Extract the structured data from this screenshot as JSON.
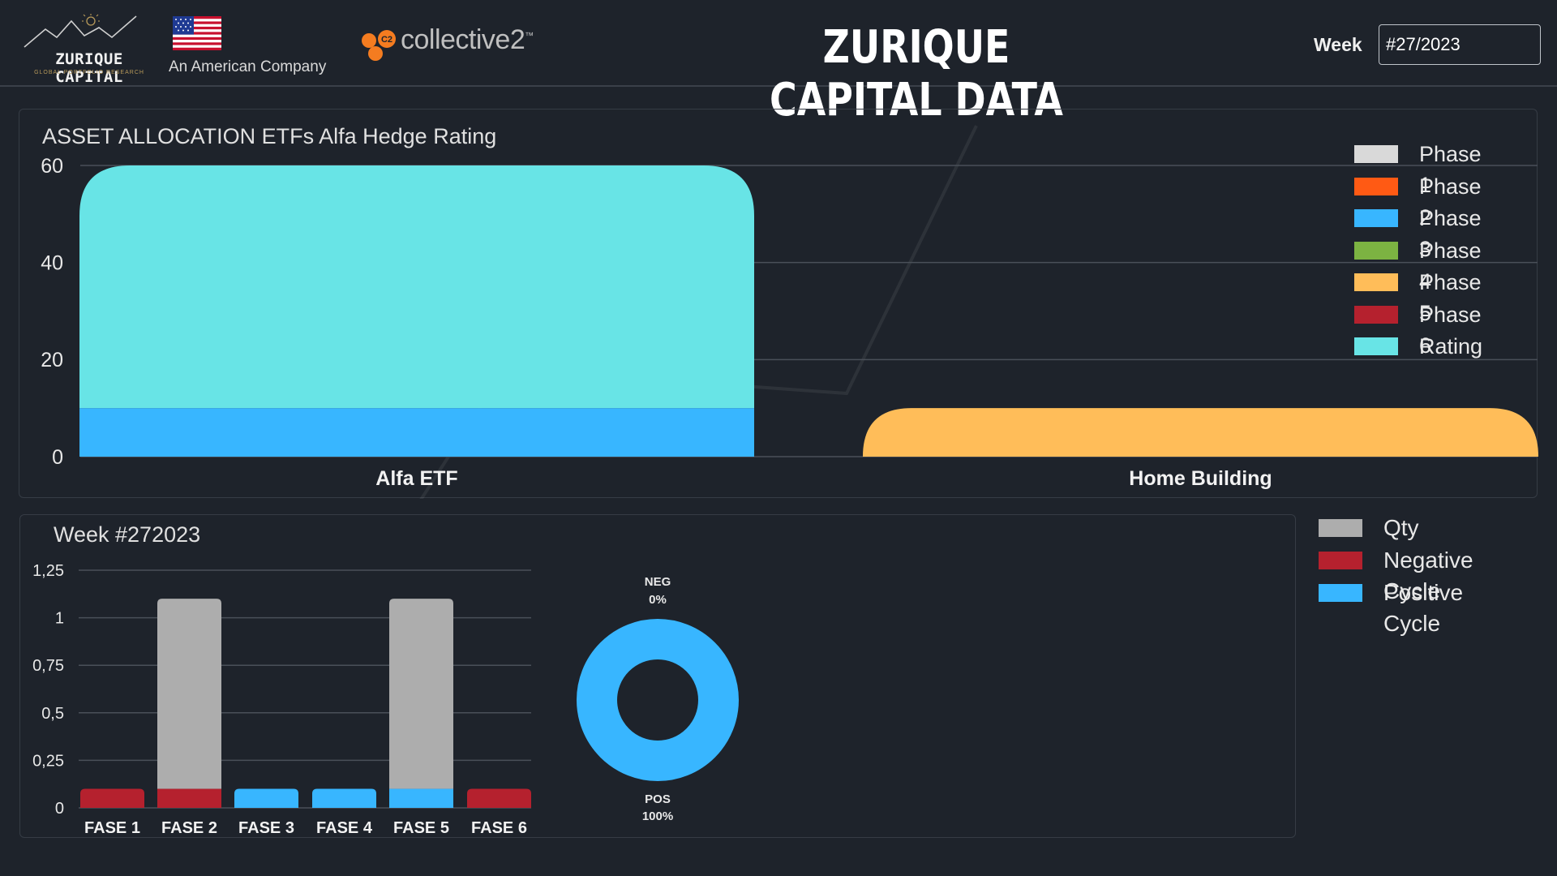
{
  "header": {
    "logo_name": "ZURIQUE CAPITAL",
    "logo_sub": "GLOBAL PORTFOLIO RESEARCH",
    "company_tagline": "An American Company",
    "partner_badge": "C2",
    "partner_name": "collective2",
    "partner_tm": "™",
    "title": "ZURIQUE CAPITAL DATA",
    "week_label": "Week",
    "week_value": "#27/2023"
  },
  "colors": {
    "background": "#1e232b",
    "phase1": "#d9d9d9",
    "phase2": "#ff5a14",
    "phase3": "#38b6ff",
    "phase4": "#7cb342",
    "phase5": "#ffbd59",
    "phase6": "#b5212e",
    "rating": "#68e4e6",
    "qty": "#adadad",
    "negative": "#b5212e",
    "positive": "#38b6ff"
  },
  "icons": [
    "mountain-sun-logo-icon",
    "us-flag-icon",
    "collective2-logo-icon"
  ],
  "chart_data": [
    {
      "type": "bar",
      "stacked": true,
      "title": "ASSET ALLOCATION ETFs Alfa Hedge Rating",
      "categories": [
        "Alfa ETF",
        "Home Building"
      ],
      "ylim": [
        0,
        60
      ],
      "yticks": [
        "0",
        "20",
        "40",
        "60"
      ],
      "grid": true,
      "legend_position": "top-right",
      "series": [
        {
          "name": "Phase 1",
          "color": "#d9d9d9",
          "values": [
            0,
            0
          ]
        },
        {
          "name": "Phase 2",
          "color": "#ff5a14",
          "values": [
            0,
            0
          ]
        },
        {
          "name": "Phase 3",
          "color": "#38b6ff",
          "values": [
            10,
            0
          ]
        },
        {
          "name": "Phase 4",
          "color": "#7cb342",
          "values": [
            0,
            0
          ]
        },
        {
          "name": "Phase 5",
          "color": "#ffbd59",
          "values": [
            0,
            10
          ]
        },
        {
          "name": "Phase 6",
          "color": "#b5212e",
          "values": [
            0,
            0
          ]
        },
        {
          "name": "Rating",
          "color": "#68e4e6",
          "values": [
            50,
            0
          ]
        }
      ]
    },
    {
      "type": "bar",
      "stacked": true,
      "title": "Week #272023",
      "categories": [
        "FASE 1",
        "FASE 2",
        "FASE 3",
        "FASE 4",
        "FASE 5",
        "FASE 6"
      ],
      "ylim": [
        0,
        1.25
      ],
      "yticks": [
        "0",
        "0,25",
        "0,5",
        "0,75",
        "1",
        "1,25"
      ],
      "grid": true,
      "legend_position": "right",
      "series": [
        {
          "name": "Negative Cycle",
          "color": "#b5212e",
          "values": [
            0.1,
            0.1,
            0,
            0,
            0,
            0.1
          ]
        },
        {
          "name": "Positive Cycle",
          "color": "#38b6ff",
          "values": [
            0,
            0,
            0.1,
            0.1,
            0.1,
            0
          ]
        },
        {
          "name": "Qty",
          "color": "#adadad",
          "values": [
            0,
            1.0,
            0,
            0,
            1.0,
            0
          ]
        }
      ]
    },
    {
      "type": "pie",
      "donut": true,
      "slices": [
        {
          "name": "NEG",
          "label": "0%",
          "value": 0,
          "color": "#b5212e"
        },
        {
          "name": "POS",
          "label": "100%",
          "value": 100,
          "color": "#38b6ff"
        }
      ]
    }
  ],
  "legend2": [
    {
      "name": "Qty",
      "color": "#adadad"
    },
    {
      "name": "Negative Cycle",
      "color": "#b5212e"
    },
    {
      "name": "Positive Cycle",
      "color": "#38b6ff"
    }
  ]
}
